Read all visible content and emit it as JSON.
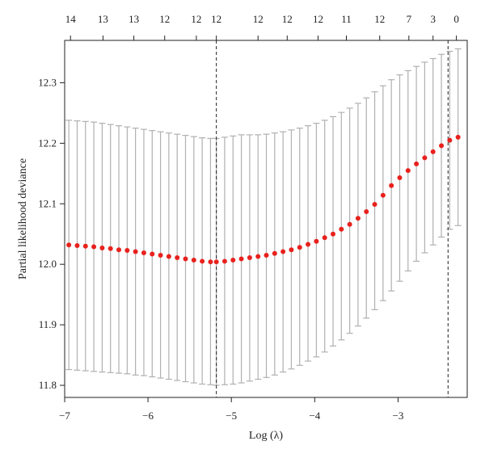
{
  "chart_data": {
    "type": "scatter",
    "title": "",
    "xlabel": "Log (λ)",
    "ylabel": "Partial likelihood deviance",
    "xlim": [
      -7.0,
      -2.17
    ],
    "ylim": [
      11.78,
      12.37
    ],
    "x_ticks": [
      -7,
      -6,
      -5,
      -4,
      -3
    ],
    "x_tick_labels": [
      "−7",
      "−6",
      "−5",
      "−4",
      "−3"
    ],
    "y_ticks": [
      11.8,
      11.9,
      12.0,
      12.1,
      12.2,
      12.3
    ],
    "y_tick_labels": [
      "11.8",
      "11.9",
      "12.0",
      "12.1",
      "12.2",
      "12.3"
    ],
    "top_axis": {
      "positions": [
        -6.93,
        -6.54,
        -6.17,
        -5.8,
        -5.42,
        -5.18,
        -4.68,
        -4.33,
        -3.96,
        -3.62,
        -3.22,
        -2.87,
        -2.58,
        -2.3
      ],
      "labels": [
        "14",
        "13",
        "13",
        "12",
        "12",
        "12",
        "12",
        "12",
        "12",
        "11",
        "12",
        "7",
        "3",
        "0"
      ]
    },
    "vlines": [
      -5.18,
      -2.4
    ],
    "grid": false,
    "legend": "none",
    "colors": {
      "point": "#e8211d",
      "errorbar": "#b0b0b0",
      "axis": "#222222",
      "vline": "#222222"
    },
    "series": [
      {
        "x": [
          -6.95,
          -6.85,
          -6.75,
          -6.65,
          -6.55,
          -6.45,
          -6.35,
          -6.25,
          -6.15,
          -6.05,
          -5.95,
          -5.85,
          -5.75,
          -5.65,
          -5.55,
          -5.45,
          -5.35,
          -5.25,
          -5.18,
          -5.08,
          -4.98,
          -4.88,
          -4.78,
          -4.68,
          -4.58,
          -4.48,
          -4.38,
          -4.28,
          -4.18,
          -4.08,
          -3.98,
          -3.88,
          -3.78,
          -3.68,
          -3.58,
          -3.48,
          -3.38,
          -3.28,
          -3.18,
          -3.08,
          -2.98,
          -2.88,
          -2.78,
          -2.68,
          -2.58,
          -2.48,
          -2.38,
          -2.28
        ],
        "y": [
          12.032,
          12.031,
          12.03,
          12.029,
          12.027,
          12.026,
          12.024,
          12.023,
          12.021,
          12.019,
          12.017,
          12.015,
          12.013,
          12.011,
          12.009,
          12.007,
          12.005,
          12.004,
          12.004,
          12.005,
          12.007,
          12.009,
          12.011,
          12.013,
          12.015,
          12.018,
          12.021,
          12.024,
          12.028,
          12.033,
          12.038,
          12.044,
          12.05,
          12.058,
          12.066,
          12.076,
          12.087,
          12.099,
          12.114,
          12.13,
          12.143,
          12.155,
          12.166,
          12.176,
          12.186,
          12.196,
          12.205,
          12.21
        ],
        "upper": [
          12.238,
          12.237,
          12.236,
          12.235,
          12.233,
          12.231,
          12.229,
          12.227,
          12.225,
          12.223,
          12.221,
          12.219,
          12.217,
          12.215,
          12.213,
          12.211,
          12.209,
          12.208,
          12.208,
          12.21,
          12.212,
          12.214,
          12.214,
          12.214,
          12.215,
          12.217,
          12.219,
          12.222,
          12.225,
          12.229,
          12.233,
          12.238,
          12.244,
          12.251,
          12.258,
          12.266,
          12.275,
          12.285,
          12.295,
          12.305,
          12.313,
          12.32,
          12.327,
          12.334,
          12.34,
          12.347,
          12.352,
          12.356
        ],
        "lower": [
          11.826,
          11.825,
          11.824,
          11.823,
          11.822,
          11.821,
          11.82,
          11.819,
          11.817,
          11.816,
          11.814,
          11.812,
          11.81,
          11.808,
          11.806,
          11.804,
          11.802,
          11.801,
          11.8,
          11.801,
          11.802,
          11.804,
          11.807,
          11.81,
          11.813,
          11.817,
          11.822,
          11.827,
          11.833,
          11.84,
          11.847,
          11.855,
          11.865,
          11.875,
          11.886,
          11.898,
          11.911,
          11.925,
          11.94,
          11.956,
          11.972,
          11.989,
          12.005,
          12.019,
          12.032,
          12.045,
          12.058,
          12.064
        ]
      }
    ]
  }
}
